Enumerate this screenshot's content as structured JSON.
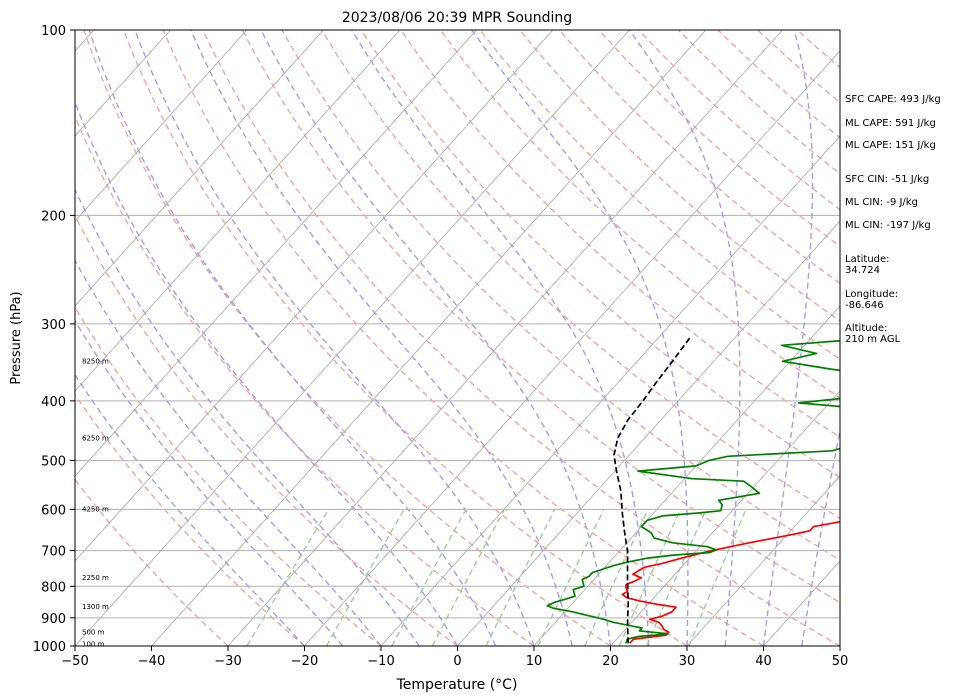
{
  "chart_data": {
    "type": "line",
    "title": "2023/08/06 20:39 MPR Sounding",
    "xlabel": "Temperature (°C)",
    "ylabel": "Pressure (hPa)",
    "xlim": [
      -50,
      50
    ],
    "ylim": [
      1000,
      100
    ],
    "y_scale": "log",
    "x_ticks": [
      "−50",
      "−40",
      "−30",
      "−20",
      "−10",
      "0",
      "10",
      "20",
      "30",
      "40",
      "50"
    ],
    "y_ticks": [
      "100",
      "200",
      "300",
      "400",
      "500",
      "600",
      "700",
      "800",
      "900",
      "1000"
    ],
    "grid": true,
    "height_labels": [
      {
        "p": 995,
        "label": "100 m"
      },
      {
        "p": 950,
        "label": "500 m"
      },
      {
        "p": 865,
        "label": "1300 m"
      },
      {
        "p": 775,
        "label": "2250 m"
      },
      {
        "p": 600,
        "label": "4250 m"
      },
      {
        "p": 460,
        "label": "6250 m"
      },
      {
        "p": 345,
        "label": "8250 m"
      }
    ],
    "series": [
      {
        "color": "#ff0000",
        "points": [
          [
            22.2,
            990
          ],
          [
            22.2,
            975
          ],
          [
            26,
            960
          ],
          [
            26,
            950
          ],
          [
            25,
            940
          ],
          [
            24.5,
            930
          ],
          [
            24,
            922
          ],
          [
            23.5,
            915
          ],
          [
            22,
            905
          ],
          [
            23.2,
            895
          ],
          [
            24,
            880
          ],
          [
            24,
            865
          ],
          [
            21,
            855
          ],
          [
            18.5,
            845
          ],
          [
            16.5,
            835
          ],
          [
            15.5,
            825
          ],
          [
            15.8,
            815
          ],
          [
            15.2,
            805
          ],
          [
            14.8,
            795
          ],
          [
            15.5,
            785
          ],
          [
            16,
            775
          ],
          [
            14.5,
            765
          ],
          [
            14.8,
            755
          ],
          [
            15.2,
            745
          ],
          [
            17,
            735
          ],
          [
            19,
            720
          ],
          [
            22,
            700
          ],
          [
            26,
            680
          ],
          [
            30.5,
            660
          ],
          [
            32.5,
            650
          ],
          [
            32.5,
            640
          ],
          [
            35,
            630
          ],
          [
            37,
            620
          ],
          [
            40.5,
            605
          ],
          [
            40.5,
            595
          ],
          [
            41,
            585
          ],
          [
            43,
            570
          ],
          [
            44,
            560
          ],
          [
            45,
            550
          ],
          [
            43.5,
            540
          ],
          [
            41.5,
            527
          ],
          [
            43.5,
            515
          ],
          [
            44,
            500
          ],
          [
            44.8,
            480
          ],
          [
            45,
            470
          ],
          [
            44,
            455
          ],
          [
            43,
            442
          ],
          [
            42,
            430
          ],
          [
            41,
            415
          ],
          [
            40.5,
            405
          ],
          [
            41,
            395
          ],
          [
            41,
            385
          ],
          [
            44.5,
            375
          ],
          [
            46,
            365
          ],
          [
            47.5,
            360
          ],
          [
            50,
            350
          ]
        ]
      },
      {
        "color": "#008000",
        "points": [
          [
            21.7,
            990
          ],
          [
            21.4,
            975
          ],
          [
            22.5,
            965
          ],
          [
            24.5,
            960
          ],
          [
            26,
            955
          ],
          [
            24,
            950
          ],
          [
            22,
            945
          ],
          [
            22,
            935
          ],
          [
            17.5,
            915
          ],
          [
            16,
            905
          ],
          [
            13,
            890
          ],
          [
            11,
            880
          ],
          [
            8,
            868
          ],
          [
            7,
            860
          ],
          [
            7.5,
            850
          ],
          [
            8.5,
            840
          ],
          [
            9.5,
            830
          ],
          [
            9,
            820
          ],
          [
            8.5,
            810
          ],
          [
            9.5,
            800
          ],
          [
            9,
            790
          ],
          [
            8.5,
            780
          ],
          [
            9,
            770
          ],
          [
            9,
            760
          ],
          [
            10,
            750
          ],
          [
            11,
            740
          ],
          [
            12.5,
            730
          ],
          [
            14.5,
            720
          ],
          [
            17.5,
            712
          ],
          [
            22,
            705
          ],
          [
            22.5,
            698
          ],
          [
            21,
            690
          ],
          [
            16,
            680
          ],
          [
            13,
            668
          ],
          [
            12,
            655
          ],
          [
            10,
            640
          ],
          [
            10,
            625
          ],
          [
            11.5,
            615
          ],
          [
            16,
            608
          ],
          [
            18.5,
            603
          ],
          [
            18,
            590
          ],
          [
            17,
            580
          ],
          [
            21.5,
            565
          ],
          [
            19.5,
            550
          ],
          [
            18,
            540
          ],
          [
            11,
            535
          ],
          [
            3,
            520
          ],
          [
            10,
            510
          ],
          [
            11,
            500
          ],
          [
            13,
            492
          ],
          [
            26,
            482
          ],
          [
            28,
            472
          ],
          [
            28.5,
            460
          ],
          [
            32.5,
            440
          ],
          [
            28,
            425
          ],
          [
            28.5,
            415
          ],
          [
            16,
            403
          ],
          [
            26,
            390
          ],
          [
            26.5,
            378
          ],
          [
            24,
            365
          ],
          [
            16,
            355
          ],
          [
            9,
            345
          ],
          [
            12.5,
            335
          ],
          [
            7,
            325
          ],
          [
            20,
            315
          ]
        ]
      },
      {
        "color": "#000000",
        "dashed": true,
        "points": [
          [
            22,
            990
          ],
          [
            19.6,
            920
          ],
          [
            17.2,
            850
          ],
          [
            14.4,
            780
          ],
          [
            11,
            700
          ],
          [
            8.8,
            660
          ],
          [
            6,
            610
          ],
          [
            3.1,
            560
          ],
          [
            0.2,
            520
          ],
          [
            -2,
            490
          ],
          [
            -3.5,
            460
          ],
          [
            -4.3,
            430
          ],
          [
            -4.6,
            400
          ],
          [
            -5,
            375
          ],
          [
            -5.4,
            345
          ],
          [
            -5.9,
            315
          ]
        ]
      }
    ]
  },
  "stats": [
    {
      "label": "SFC CAPE: 493 J/kg"
    },
    {
      "label": "ML CAPE: 591 J/kg"
    },
    {
      "label": "ML CAPE: 151 J/kg"
    },
    {
      "label": "SFC CIN: -51 J/kg"
    },
    {
      "label": "ML CIN: -9 J/kg"
    },
    {
      "label": "ML CIN: -197 J/kg"
    },
    {
      "label": "Latitude:",
      "value": "34.724"
    },
    {
      "label": "Longitude:",
      "value": "-86.646"
    },
    {
      "label": "Altitude:",
      "value": "210 m AGL"
    }
  ],
  "colors": {
    "isotherm": "#aaaaaa",
    "dry_adiabat": "#f5a3a3",
    "moist_adiabat": "#a69cf2",
    "mixing_ratio": "#9ccf9c"
  }
}
